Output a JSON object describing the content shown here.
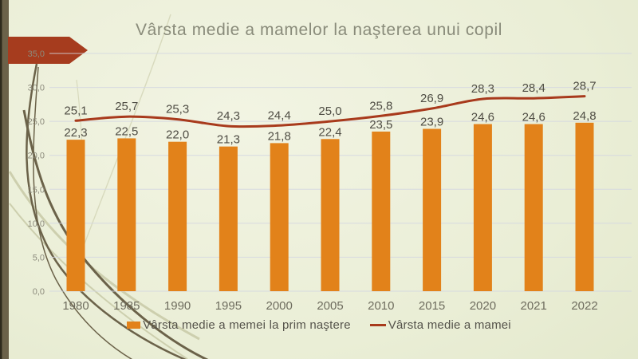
{
  "slide": {
    "title": "Vârsta medie a mamelor la naşterea unui copil"
  },
  "chart_data": {
    "type": "bar+line combo",
    "title": "Vârsta medie a mamelor la naşterea unui copil",
    "categories": [
      "1980",
      "1985",
      "1990",
      "1995",
      "2000",
      "2005",
      "2010",
      "2015",
      "2020",
      "2021",
      "2022"
    ],
    "series": [
      {
        "name": "Vârsta medie a memei la prim naştere",
        "type": "bar",
        "values": [
          22.3,
          22.5,
          22.0,
          21.3,
          21.8,
          22.4,
          23.5,
          23.9,
          24.6,
          24.6,
          24.8
        ]
      },
      {
        "name": "Vârsta medie a mamei",
        "type": "line",
        "values": [
          25.1,
          25.7,
          25.3,
          24.3,
          24.4,
          25.0,
          25.8,
          26.9,
          28.3,
          28.4,
          28.7
        ]
      }
    ],
    "ylim": [
      0,
      35
    ],
    "ytick_step": 5,
    "ytick_labels": [
      "0,0",
      "5,0",
      "10,0",
      "15,0",
      "20,0",
      "25,0",
      "30,0",
      "35,0"
    ],
    "value_label_decimal_separator": ",",
    "grid": true,
    "legend_position": "bottom"
  },
  "theme": {
    "bar_color": "#E2821A",
    "line_color": "#A83A1C",
    "arrow_color": "#A63C1E",
    "stripe_color": "#6B6249",
    "stripe_edge_color": "#2E2A1C",
    "branch_dark": "#6B6249",
    "branch_light": "#CDCFAE",
    "stem_light": "#D8DABD",
    "gridline_color": "rgba(210,214,224,0.85)",
    "title_color": "#898B7A",
    "tick_color": "#8C8A7C",
    "value_label_color": "#4F4D44",
    "category_color": "#6E6C5E",
    "legend_text_color": "#55534B"
  }
}
